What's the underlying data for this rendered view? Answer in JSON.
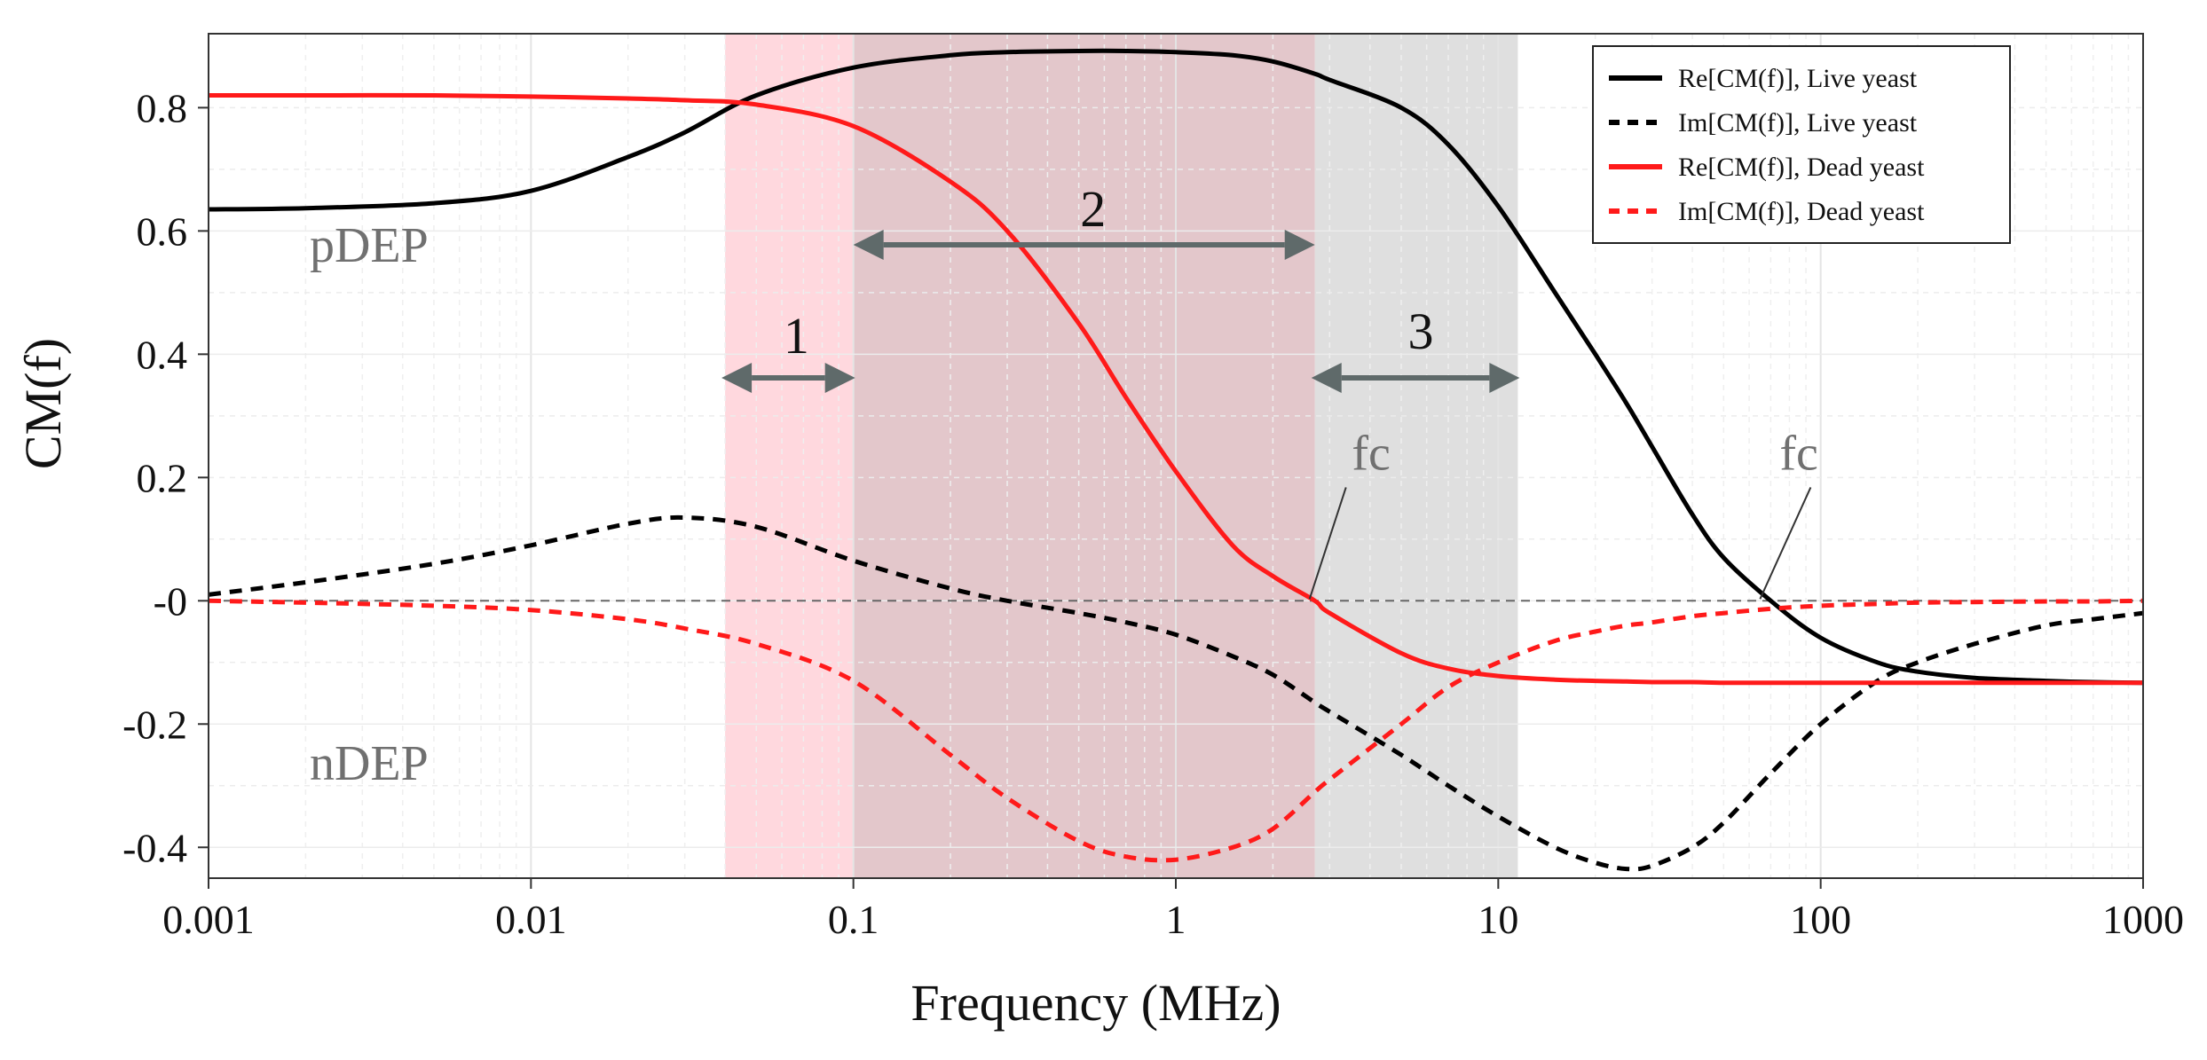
{
  "chart_data": {
    "type": "line",
    "title": "",
    "xlabel": "Frequency (MHz)",
    "ylabel": "CM(f)",
    "xscale": "log",
    "xlim": [
      0.001,
      1000
    ],
    "ylim": [
      -0.45,
      0.92
    ],
    "grid": true,
    "legend_position": "top-right",
    "x_ticks": [
      {
        "value": 0.001,
        "label": "0.001"
      },
      {
        "value": 0.01,
        "label": "0.01"
      },
      {
        "value": 0.1,
        "label": "0.1"
      },
      {
        "value": 1,
        "label": "1"
      },
      {
        "value": 10,
        "label": "10"
      },
      {
        "value": 100,
        "label": "100"
      },
      {
        "value": 1000,
        "label": "1000"
      }
    ],
    "y_ticks": [
      {
        "value": 0.8,
        "label": "0.8"
      },
      {
        "value": 0.6,
        "label": "0.6"
      },
      {
        "value": 0.4,
        "label": "0.4"
      },
      {
        "value": 0.2,
        "label": "0.2"
      },
      {
        "value": 0.0,
        "label": "-0"
      },
      {
        "value": -0.2,
        "label": "-0.2"
      },
      {
        "value": -0.4,
        "label": "-0.4"
      }
    ],
    "x": [
      0.001,
      0.002,
      0.005,
      0.01,
      0.02,
      0.03,
      0.05,
      0.1,
      0.2,
      0.3,
      0.5,
      0.7,
      1,
      1.5,
      2,
      2.7,
      3,
      5,
      7,
      10,
      15,
      20,
      25,
      30,
      40,
      50,
      70,
      100,
      150,
      200,
      300,
      500,
      700,
      1000
    ],
    "series": [
      {
        "name": "Re[CM(f)], Live yeast",
        "color": "#000000",
        "dash": "solid",
        "values": [
          0.635,
          0.637,
          0.645,
          0.665,
          0.72,
          0.76,
          0.82,
          0.865,
          0.885,
          0.89,
          0.892,
          0.892,
          0.89,
          0.885,
          0.875,
          0.855,
          0.845,
          0.8,
          0.74,
          0.64,
          0.5,
          0.4,
          0.32,
          0.25,
          0.14,
          0.07,
          -0.0,
          -0.06,
          -0.1,
          -0.115,
          -0.125,
          -0.13,
          -0.132,
          -0.133
        ]
      },
      {
        "name": "Im[CM(f)], Live yeast",
        "color": "#000000",
        "dash": "dashed",
        "values": [
          0.01,
          0.03,
          0.06,
          0.09,
          0.125,
          0.135,
          0.12,
          0.065,
          0.02,
          0.0,
          -0.02,
          -0.035,
          -0.055,
          -0.09,
          -0.12,
          -0.165,
          -0.18,
          -0.25,
          -0.3,
          -0.35,
          -0.4,
          -0.425,
          -0.435,
          -0.43,
          -0.4,
          -0.36,
          -0.28,
          -0.2,
          -0.13,
          -0.1,
          -0.07,
          -0.04,
          -0.03,
          -0.02
        ]
      },
      {
        "name": "Re[CM(f)], Dead yeast",
        "color": "#ff1a1a",
        "dash": "solid",
        "values": [
          0.82,
          0.82,
          0.82,
          0.818,
          0.815,
          0.812,
          0.805,
          0.77,
          0.68,
          0.6,
          0.45,
          0.33,
          0.21,
          0.09,
          0.04,
          0.0,
          -0.02,
          -0.085,
          -0.11,
          -0.122,
          -0.128,
          -0.13,
          -0.131,
          -0.132,
          -0.132,
          -0.133,
          -0.133,
          -0.133,
          -0.133,
          -0.133,
          -0.133,
          -0.133,
          -0.133,
          -0.133
        ]
      },
      {
        "name": "Im[CM(f)], Dead yeast",
        "color": "#ff1a1a",
        "dash": "dashed",
        "values": [
          0.0,
          -0.003,
          -0.008,
          -0.015,
          -0.03,
          -0.045,
          -0.07,
          -0.13,
          -0.25,
          -0.32,
          -0.39,
          -0.415,
          -0.42,
          -0.4,
          -0.37,
          -0.31,
          -0.29,
          -0.2,
          -0.14,
          -0.1,
          -0.065,
          -0.05,
          -0.04,
          -0.035,
          -0.025,
          -0.02,
          -0.013,
          -0.008,
          -0.005,
          -0.003,
          -0.002,
          -0.001,
          -0.001,
          0.0
        ]
      }
    ],
    "zero_line": {
      "y": 0
    },
    "regions": [
      {
        "label": "1",
        "x_start": 0.04,
        "x_end": 0.1,
        "color": "#ffd6dc"
      },
      {
        "label": "2",
        "x_start": 0.1,
        "x_end": 2.7,
        "color": "#e2c4c8"
      },
      {
        "label": "3",
        "x_start": 2.7,
        "x_end": 11.5,
        "color": "#dddddd"
      }
    ],
    "annotations": {
      "pdep": {
        "text": "pDEP",
        "x": 0.0015,
        "y": 0.55
      },
      "ndep": {
        "text": "nDEP",
        "x": 0.0015,
        "y": -0.29
      },
      "fc_dead": {
        "text": "fc",
        "x": 3.0,
        "y": 0.22,
        "point_x": 2.7,
        "point_y": 0.0
      },
      "fc_live": {
        "text": "fc",
        "x": 70,
        "y": 0.22,
        "point_x": 70,
        "point_y": 0.0
      }
    },
    "arrow_colors": {
      "arrow": "#5f6a6a",
      "annotation": "#707070"
    }
  }
}
